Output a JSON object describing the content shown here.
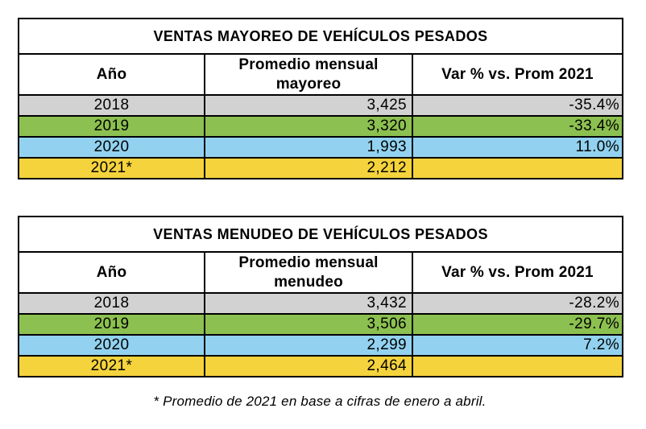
{
  "chart_data": [
    {
      "type": "table",
      "title": "VENTAS MAYOREO DE VEHÍCULOS PESADOS",
      "columns": [
        "Año",
        "Promedio mensual\nmayoreo",
        "Var % vs. Prom 2021"
      ],
      "rows": [
        {
          "year": "2018",
          "avg": "3,425",
          "var_pct": "-35.4%",
          "row_color": "#d2d2d2"
        },
        {
          "year": "2019",
          "avg": "3,320",
          "var_pct": "-33.4%",
          "row_color": "#8cc050"
        },
        {
          "year": "2020",
          "avg": "1,993",
          "var_pct": "11.0%",
          "row_color": "#92d2f0"
        },
        {
          "year": "2021*",
          "avg": "2,212",
          "var_pct": "",
          "row_color": "#f5d33c"
        }
      ]
    },
    {
      "type": "table",
      "title": "VENTAS MENUDEO DE VEHÍCULOS PESADOS",
      "columns": [
        "Año",
        "Promedio mensual\nmenudeo",
        "Var % vs. Prom 2021"
      ],
      "rows": [
        {
          "year": "2018",
          "avg": "3,432",
          "var_pct": "-28.2%",
          "row_color": "#d2d2d2"
        },
        {
          "year": "2019",
          "avg": "3,506",
          "var_pct": "-29.7%",
          "row_color": "#8cc050"
        },
        {
          "year": "2020",
          "avg": "2,299",
          "var_pct": "7.2%",
          "row_color": "#92d2f0"
        },
        {
          "year": "2021*",
          "avg": "2,464",
          "var_pct": "",
          "row_color": "#f5d33c"
        }
      ]
    }
  ],
  "footnote": "* Promedio de 2021 en base a cifras de enero a abril.",
  "colors": {
    "border": "#000000",
    "text": "#000000",
    "row_gray": "#d2d2d2",
    "row_green": "#8cc050",
    "row_blue": "#92d2f0",
    "row_yellow": "#f5d33c",
    "background": "#ffffff"
  }
}
